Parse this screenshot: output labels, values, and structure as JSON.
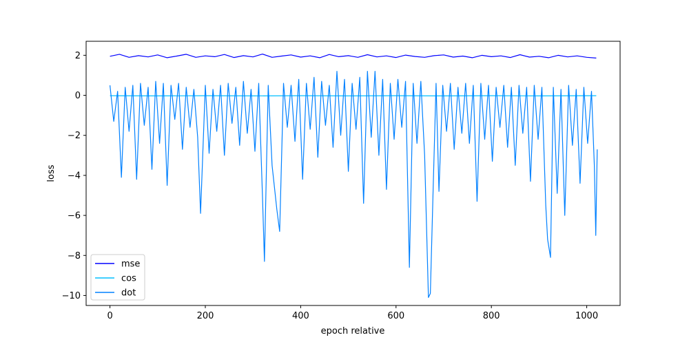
{
  "chart_data": {
    "type": "line",
    "title": "",
    "xlabel": "epoch relative",
    "ylabel": "loss",
    "xlim": [
      -50,
      1070
    ],
    "ylim": [
      -10.5,
      2.7
    ],
    "xticks": [
      0,
      200,
      400,
      600,
      800,
      1000
    ],
    "xtick_labels": [
      "0",
      "200",
      "400",
      "600",
      "800",
      "1000"
    ],
    "yticks": [
      2,
      0,
      -2,
      -4,
      -6,
      -8,
      -10
    ],
    "ytick_labels": [
      "2",
      "0",
      "−2",
      "−4",
      "−6",
      "−8",
      "−10"
    ],
    "grid": false,
    "legend_position": "lower-left",
    "series": [
      {
        "name": "mse",
        "color": "#0000ff",
        "x": [
          0,
          20,
          40,
          60,
          80,
          100,
          120,
          140,
          160,
          180,
          200,
          220,
          240,
          260,
          280,
          300,
          320,
          340,
          360,
          380,
          400,
          420,
          440,
          460,
          480,
          500,
          520,
          540,
          560,
          580,
          600,
          620,
          640,
          660,
          680,
          700,
          720,
          740,
          760,
          780,
          800,
          820,
          840,
          860,
          880,
          900,
          920,
          940,
          960,
          980,
          1000,
          1020
        ],
        "values": [
          1.95,
          2.05,
          1.9,
          1.98,
          1.92,
          2.02,
          1.88,
          1.96,
          2.05,
          1.9,
          1.97,
          1.93,
          2.04,
          1.89,
          1.98,
          1.92,
          2.06,
          1.9,
          1.96,
          2.02,
          1.91,
          1.97,
          1.88,
          2.04,
          1.93,
          1.98,
          1.9,
          2.03,
          1.92,
          1.97,
          1.89,
          2.01,
          1.94,
          1.9,
          1.98,
          2.02,
          1.91,
          1.96,
          1.88,
          2.0,
          1.93,
          1.97,
          1.89,
          2.03,
          1.91,
          1.95,
          1.88,
          2.0,
          1.92,
          1.97,
          1.9,
          1.86
        ]
      },
      {
        "name": "cos",
        "color": "#00bfff",
        "x": [
          0,
          100,
          200,
          300,
          400,
          500,
          600,
          700,
          800,
          900,
          1000,
          1020
        ],
        "values": [
          -0.02,
          -0.03,
          -0.02,
          -0.03,
          -0.02,
          -0.03,
          -0.02,
          -0.03,
          -0.02,
          -0.03,
          -0.02,
          -0.02
        ]
      },
      {
        "name": "dot",
        "color": "#0080ff",
        "x": [
          0,
          8,
          16,
          24,
          32,
          40,
          48,
          56,
          64,
          72,
          80,
          88,
          96,
          104,
          112,
          120,
          128,
          136,
          144,
          152,
          160,
          168,
          176,
          184,
          190,
          200,
          208,
          216,
          224,
          232,
          240,
          248,
          256,
          264,
          272,
          280,
          288,
          296,
          304,
          312,
          320,
          324,
          332,
          340,
          350,
          356,
          364,
          372,
          380,
          388,
          396,
          404,
          412,
          420,
          428,
          436,
          444,
          452,
          460,
          468,
          476,
          484,
          492,
          500,
          508,
          516,
          524,
          532,
          540,
          548,
          556,
          564,
          572,
          580,
          588,
          596,
          604,
          612,
          620,
          628,
          636,
          644,
          652,
          660,
          668,
          672,
          678,
          684,
          690,
          698,
          706,
          714,
          722,
          730,
          738,
          746,
          754,
          762,
          770,
          778,
          786,
          794,
          802,
          810,
          818,
          826,
          834,
          842,
          850,
          858,
          866,
          874,
          882,
          890,
          898,
          906,
          914,
          918,
          924,
          930,
          938,
          946,
          954,
          962,
          970,
          978,
          986,
          994,
          1002,
          1010,
          1016,
          1019,
          1022
        ],
        "values": [
          0.5,
          -1.3,
          0.2,
          -4.1,
          0.4,
          -1.8,
          0.5,
          -4.2,
          0.6,
          -1.5,
          0.4,
          -3.7,
          0.7,
          -2.4,
          0.6,
          -4.5,
          0.5,
          -1.2,
          0.6,
          -2.7,
          0.4,
          -1.6,
          0.3,
          -2.1,
          -5.9,
          0.5,
          -2.9,
          0.3,
          -1.8,
          0.5,
          -3.0,
          0.6,
          -1.4,
          0.4,
          -2.5,
          0.7,
          -1.9,
          0.3,
          -2.8,
          0.6,
          -5.1,
          -8.3,
          0.5,
          -3.5,
          -5.7,
          -6.8,
          0.6,
          -1.6,
          0.5,
          -2.3,
          0.8,
          -4.2,
          0.6,
          -1.7,
          0.9,
          -3.1,
          0.7,
          -1.5,
          0.5,
          -2.6,
          1.2,
          -2.0,
          0.8,
          -3.8,
          0.6,
          -1.7,
          0.9,
          -5.4,
          1.2,
          -2.1,
          1.2,
          -3.0,
          0.8,
          -4.7,
          0.6,
          -2.2,
          0.8,
          -1.6,
          0.7,
          -8.6,
          0.6,
          -2.4,
          0.7,
          -3.0,
          -10.1,
          -9.9,
          -4.5,
          0.6,
          -4.8,
          0.5,
          -1.8,
          0.6,
          -2.7,
          0.4,
          -1.9,
          0.6,
          -2.4,
          0.5,
          -5.3,
          0.6,
          -2.2,
          0.5,
          -3.3,
          0.4,
          -1.6,
          0.5,
          -2.6,
          0.4,
          -3.5,
          0.5,
          -1.9,
          0.4,
          -4.3,
          0.5,
          -2.2,
          0.4,
          -5.5,
          -7.2,
          -8.1,
          0.4,
          -4.9,
          0.3,
          -6.0,
          0.5,
          -2.5,
          0.3,
          -4.4,
          0.4,
          -2.4,
          0.2,
          -3.5,
          -7.0,
          -2.7
        ]
      }
    ]
  }
}
